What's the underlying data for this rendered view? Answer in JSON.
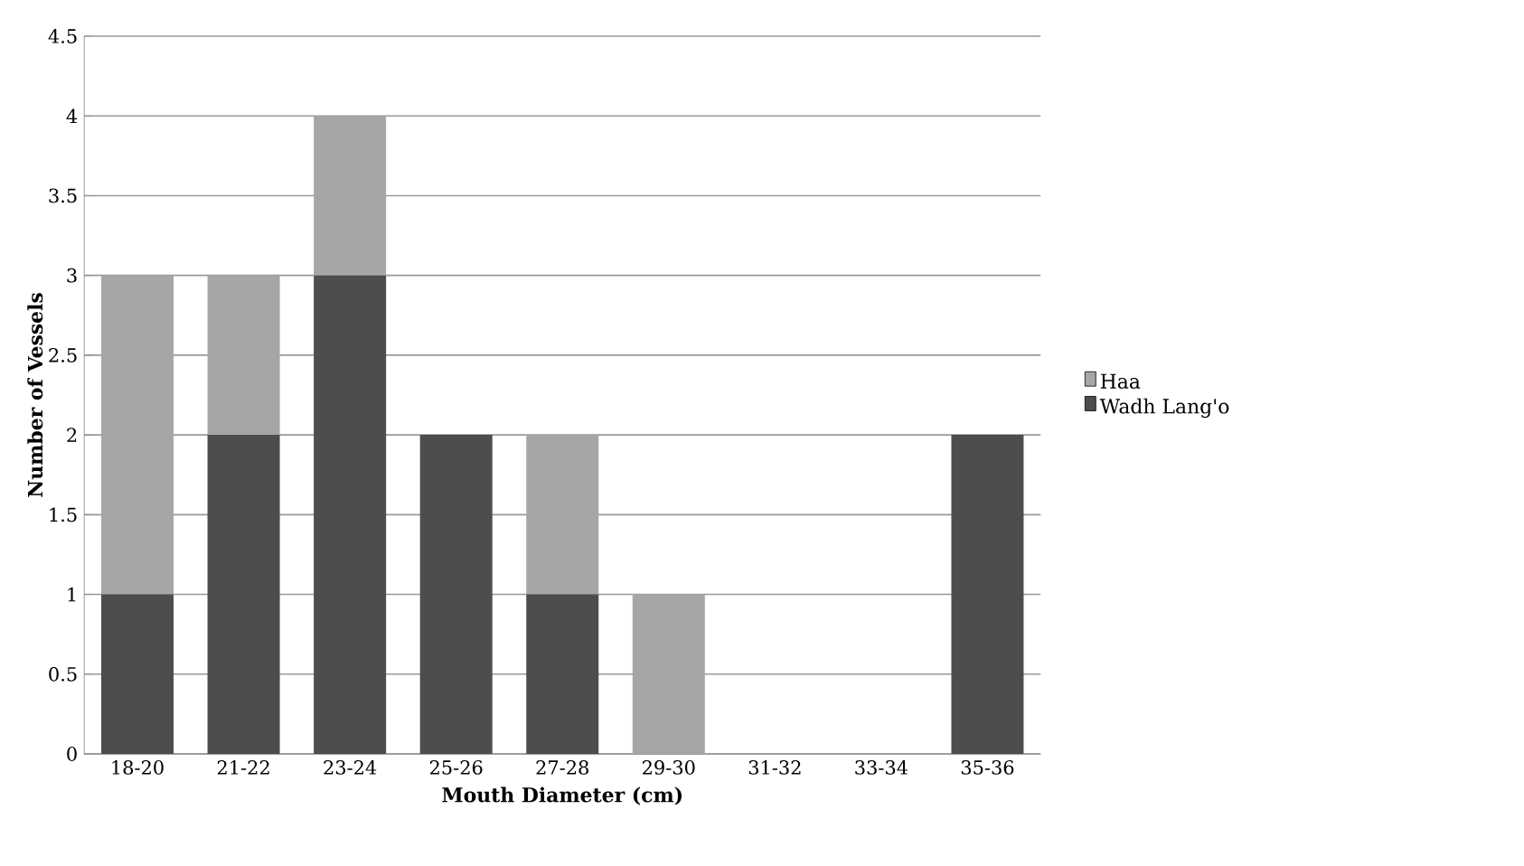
{
  "chart_data": {
    "type": "bar",
    "stacked": true,
    "xlabel": "Mouth Diameter (cm)",
    "ylabel": "Number of Vessels",
    "categories": [
      "18-20",
      "21-22",
      "23-24",
      "25-26",
      "27-28",
      "29-30",
      "31-32",
      "33-34",
      "35-36"
    ],
    "series": [
      {
        "name": "Wadh Lang'o",
        "color": "#4d4d4d",
        "values": [
          1,
          2,
          3,
          2,
          1,
          0,
          0,
          0,
          2
        ]
      },
      {
        "name": "Haa",
        "color": "#a6a6a6",
        "values": [
          2,
          1,
          1,
          0,
          1,
          1,
          0,
          0,
          0
        ]
      }
    ],
    "ylim": [
      0,
      4.5
    ],
    "yticks": [
      0,
      0.5,
      1,
      1.5,
      2,
      2.5,
      3,
      3.5,
      4,
      4.5
    ],
    "grid": "y",
    "legend": "right"
  }
}
